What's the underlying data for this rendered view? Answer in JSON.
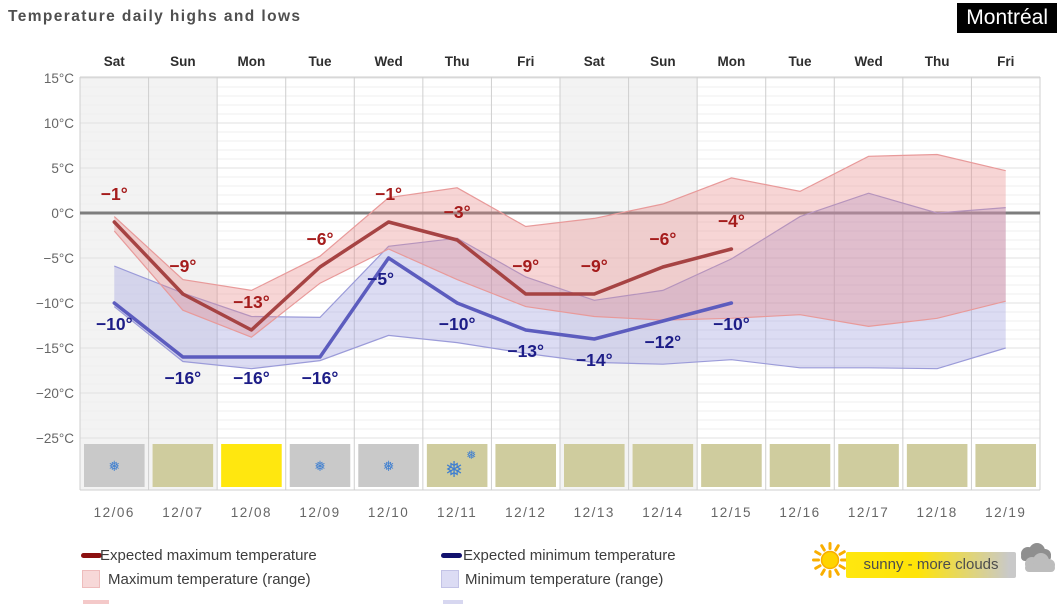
{
  "header": {
    "title": "Temperature daily highs and lows",
    "location": "Montréal"
  },
  "chart_data": {
    "type": "line",
    "days": [
      "Sat",
      "Sun",
      "Mon",
      "Tue",
      "Wed",
      "Thu",
      "Fri",
      "Sat",
      "Sun",
      "Mon",
      "Tue",
      "Wed",
      "Thu",
      "Fri"
    ],
    "dates": [
      "12/06",
      "12/07",
      "12/08",
      "12/09",
      "12/10",
      "12/11",
      "12/12",
      "12/13",
      "12/14",
      "12/15",
      "12/16",
      "12/17",
      "12/18",
      "12/19"
    ],
    "y_axis": {
      "unit": "°C",
      "ticks": [
        "15°C",
        "10°C",
        "5°C",
        "0°C",
        "−5°C",
        "−10°C",
        "−15°C",
        "−20°C",
        "−25°C"
      ],
      "tick_values": [
        15,
        10,
        5,
        0,
        -5,
        -10,
        -15,
        -20,
        -25
      ],
      "range": [
        -25,
        15
      ]
    },
    "weekend_columns": [
      0,
      1,
      7,
      8
    ],
    "series": [
      {
        "name": "Expected maximum temperature",
        "values": [
          -1,
          -9,
          -13,
          -6,
          -1,
          -3,
          -9,
          -9,
          -6,
          -4
        ],
        "labels": [
          "−1°",
          "−9°",
          "−13°",
          "−6°",
          "−1°",
          "−3°",
          "−9°",
          "−9°",
          "−6°",
          "−4°"
        ]
      },
      {
        "name": "Expected minimum temperature",
        "values": [
          -10,
          -16,
          -16,
          -16,
          -5,
          -10,
          -13,
          -14,
          -12,
          -10
        ],
        "labels": [
          "−10°",
          "−16°",
          "−16°",
          "−16°",
          "−5°",
          "−10°",
          "−13°",
          "−14°",
          "−12°",
          "−10°"
        ]
      }
    ],
    "max_range": {
      "name": "Maximum temperature (range)",
      "upper": [
        -0.4,
        -7.4,
        -8.6,
        -4.8,
        1.7,
        2.8,
        -1.5,
        -0.6,
        1.0,
        3.9,
        2.4,
        6.3,
        6.5,
        4.7
      ],
      "lower": [
        -2.0,
        -10.8,
        -13.8,
        -7.8,
        -4.0,
        -7.4,
        -10.4,
        -11.5,
        -11.9,
        -11.7,
        -11.3,
        -12.6,
        -11.7,
        -9.8
      ]
    },
    "min_range": {
      "name": "Minimum temperature (range)",
      "upper": [
        -5.9,
        -8.9,
        -11.5,
        -11.6,
        -3.7,
        -2.8,
        -7.1,
        -9.7,
        -8.6,
        -5.1,
        -0.4,
        2.2,
        0.0,
        0.6
      ],
      "lower": [
        -10.4,
        -16.5,
        -17.3,
        -16.4,
        -13.6,
        -14.4,
        -15.6,
        -16.6,
        -16.8,
        -16.3,
        -17.2,
        -17.2,
        -17.3,
        -15.0
      ]
    },
    "cells": [
      {
        "date": "12/06",
        "bg": "gray",
        "icon": "snowflake"
      },
      {
        "date": "12/07",
        "bg": "khaki",
        "icon": null
      },
      {
        "date": "12/08",
        "bg": "yellow",
        "icon": null
      },
      {
        "date": "12/09",
        "bg": "gray",
        "icon": "snowflake"
      },
      {
        "date": "12/10",
        "bg": "gray",
        "icon": "snowflake"
      },
      {
        "date": "12/11",
        "bg": "khaki",
        "icon": "snowflakes-heavy"
      },
      {
        "date": "12/12",
        "bg": "khaki",
        "icon": null
      },
      {
        "date": "12/13",
        "bg": "khaki",
        "icon": null
      },
      {
        "date": "12/14",
        "bg": "khaki",
        "icon": null
      },
      {
        "date": "12/15",
        "bg": "khaki",
        "icon": null
      },
      {
        "date": "12/16",
        "bg": "khaki",
        "icon": null
      },
      {
        "date": "12/17",
        "bg": "khaki",
        "icon": null
      },
      {
        "date": "12/18",
        "bg": "khaki",
        "icon": null
      },
      {
        "date": "12/19",
        "bg": "khaki",
        "icon": null
      }
    ]
  },
  "legend": {
    "items": [
      {
        "label": "Expected maximum temperature"
      },
      {
        "label": "Maximum temperature (range)"
      },
      {
        "label": "Expected minimum temperature"
      },
      {
        "label": "Minimum temperature (range)"
      }
    ]
  },
  "status": {
    "label": "sunny - more clouds"
  },
  "colors": {
    "expected_max_line": "#a64343",
    "expected_min_line": "#5c5cbe",
    "max_label": "#a51c1c",
    "min_label": "#1d1d87",
    "max_range_fill": "rgba(232,135,135,0.35)",
    "max_range_border": "#e89a9a",
    "min_range_fill": "rgba(155,155,221,0.35)",
    "min_range_border": "#9b9bd9",
    "zero_line": "#7d7d7d",
    "grid_minor": "#efefef",
    "grid_major": "#e2e2e2",
    "grid_vertical": "#cfcfcf",
    "weekend_bg": "#f3f3f3",
    "cell_gray": "#c9c9c9",
    "cell_khaki": "#cfcc9e",
    "cell_yellow": "#ffe70f",
    "flake": "#3f7fd0",
    "badge_bg": "#000000",
    "pill_yellow": "#ffe70f"
  }
}
